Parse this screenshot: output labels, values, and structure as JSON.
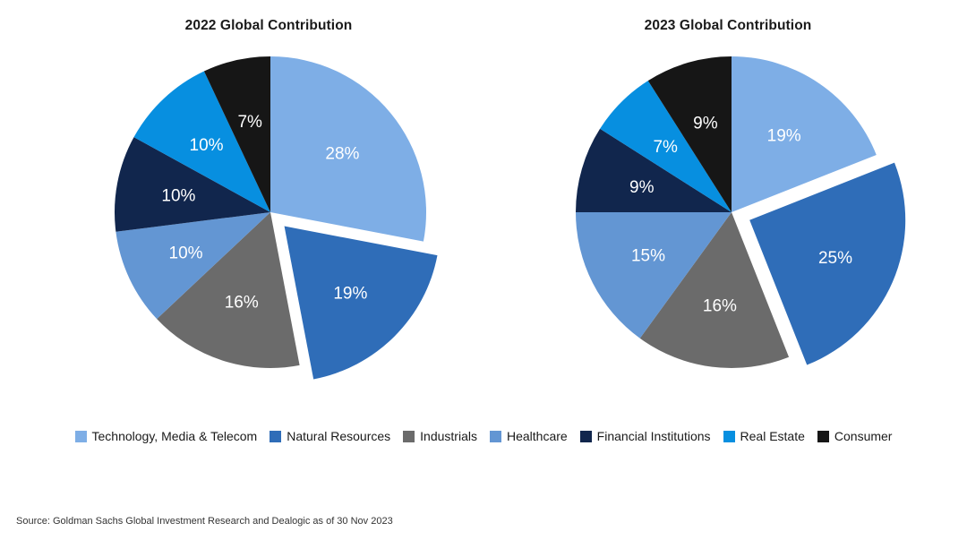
{
  "chart_data": [
    {
      "type": "pie",
      "title": "2022 Global Contribution",
      "slices": [
        {
          "category": "Technology, Media & Telecom",
          "value": 28,
          "label": "28%",
          "exploded": false
        },
        {
          "category": "Natural Resources",
          "value": 19,
          "label": "19%",
          "exploded": true
        },
        {
          "category": "Industrials",
          "value": 16,
          "label": "16%",
          "exploded": false
        },
        {
          "category": "Healthcare",
          "value": 10,
          "label": "10%",
          "exploded": false
        },
        {
          "category": "Financial Institutions",
          "value": 10,
          "label": "10%",
          "exploded": false
        },
        {
          "category": "Real Estate",
          "value": 10,
          "label": "10%",
          "exploded": false
        },
        {
          "category": "Consumer",
          "value": 7,
          "label": "7%",
          "exploded": false
        }
      ]
    },
    {
      "type": "pie",
      "title": "2023 Global Contribution",
      "slices": [
        {
          "category": "Technology, Media & Telecom",
          "value": 19,
          "label": "19%",
          "exploded": false
        },
        {
          "category": "Natural Resources",
          "value": 25,
          "label": "25%",
          "exploded": true
        },
        {
          "category": "Industrials",
          "value": 16,
          "label": "16%",
          "exploded": false
        },
        {
          "category": "Healthcare",
          "value": 15,
          "label": "15%",
          "exploded": false
        },
        {
          "category": "Financial Institutions",
          "value": 9,
          "label": "9%",
          "exploded": false
        },
        {
          "category": "Real Estate",
          "value": 7,
          "label": "7%",
          "exploded": false
        },
        {
          "category": "Consumer",
          "value": 9,
          "label": "9%",
          "exploded": false
        }
      ]
    }
  ],
  "legend": [
    {
      "label": "Technology, Media & Telecom",
      "color": "#7eaee6"
    },
    {
      "label": "Natural Resources",
      "color": "#2f6db8"
    },
    {
      "label": "Industrials",
      "color": "#6b6b6b"
    },
    {
      "label": "Healthcare",
      "color": "#6396d3"
    },
    {
      "label": "Financial Institutions",
      "color": "#11264d"
    },
    {
      "label": "Real Estate",
      "color": "#078fe0"
    },
    {
      "label": "Consumer",
      "color": "#161616"
    }
  ],
  "source": "Source: Goldman Sachs Global Investment Research and Dealogic as of 30 Nov 2023"
}
